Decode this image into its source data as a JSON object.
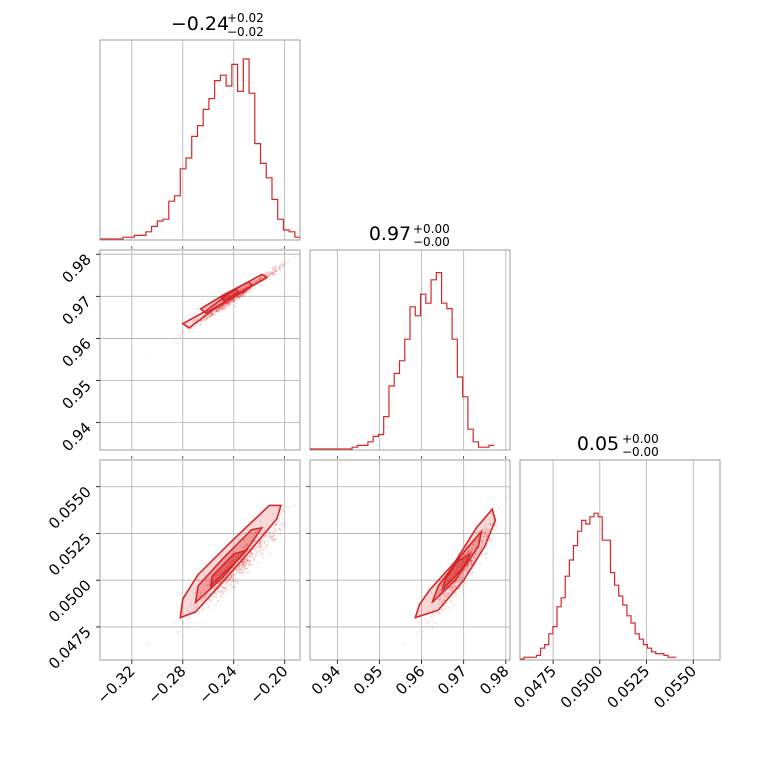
{
  "chart_data": {
    "type": "corner",
    "color": "#d62728",
    "parameters": [
      {
        "title_main": "−0.24",
        "title_sup": "+0.02",
        "title_sub": "−0.02",
        "range": [
          -0.345,
          -0.188
        ],
        "ticks": [
          -0.32,
          -0.28,
          -0.24,
          -0.2
        ],
        "tick_labels": [
          "−0.32",
          "−0.28",
          "−0.24",
          "−0.20"
        ],
        "hist_step": 0.0045,
        "hist": [
          0,
          0,
          0,
          0,
          0.01,
          0.01,
          0.02,
          0.02,
          0.04,
          0.07,
          0.1,
          0.11,
          0.21,
          0.24,
          0.39,
          0.45,
          0.57,
          0.63,
          0.72,
          0.78,
          0.88,
          0.91,
          0.85,
          0.97,
          0.82,
          1.0,
          0.81,
          0.53,
          0.42,
          0.34,
          0.22,
          0.11,
          0.05,
          0.04,
          0.01
        ]
      },
      {
        "title_main": "0.97",
        "title_sup": "+0.00",
        "title_sub": "−0.00",
        "range": [
          0.9335,
          0.981
        ],
        "ticks": [
          0.94,
          0.95,
          0.96,
          0.97,
          0.98
        ],
        "tick_labels": [
          "0.94",
          "0.95",
          "0.96",
          "0.97",
          "0.98"
        ],
        "hist_step": 0.00125,
        "hist": [
          0,
          0,
          0,
          0,
          0,
          0,
          0,
          0,
          0.01,
          0.02,
          0.02,
          0.04,
          0.07,
          0.08,
          0.18,
          0.35,
          0.42,
          0.49,
          0.61,
          0.79,
          0.74,
          0.86,
          0.81,
          0.94,
          0.98,
          0.81,
          0.78,
          0.61,
          0.4,
          0.29,
          0.11,
          0.04,
          0.01,
          0.01,
          0.02
        ]
      },
      {
        "title_main": "0.05",
        "title_sup": "+0.00",
        "title_sub": "−0.00",
        "range": [
          0.04573,
          0.05643
        ],
        "ticks": [
          0.0475,
          0.05,
          0.0525,
          0.055
        ],
        "tick_labels": [
          "0.0475",
          "0.0500",
          "0.0525",
          "0.0550"
        ],
        "hist_step": 0.00022,
        "hist": [
          0,
          0.01,
          0.01,
          0.01,
          0.02,
          0.06,
          0.08,
          0.14,
          0.18,
          0.29,
          0.34,
          0.46,
          0.55,
          0.63,
          0.71,
          0.77,
          0.75,
          0.79,
          0.81,
          0.79,
          0.66,
          0.66,
          0.48,
          0.41,
          0.35,
          0.3,
          0.24,
          0.2,
          0.14,
          0.11,
          0.08,
          0.06,
          0.04,
          0.03,
          0.03,
          0.02,
          0.01,
          0.01
        ]
      }
    ],
    "contours": {
      "pair_1_0": [
        [
          [
            -0.275,
            0.9625
          ],
          [
            -0.255,
            0.967
          ],
          [
            -0.228,
            0.972
          ],
          [
            -0.214,
            0.9745
          ],
          [
            -0.218,
            0.9752
          ],
          [
            -0.24,
            0.9715
          ],
          [
            -0.262,
            0.9665
          ],
          [
            -0.28,
            0.9635
          ]
        ],
        [
          [
            -0.262,
            0.966
          ],
          [
            -0.245,
            0.969
          ],
          [
            -0.226,
            0.9725
          ],
          [
            -0.228,
            0.9735
          ],
          [
            -0.247,
            0.9705
          ],
          [
            -0.266,
            0.967
          ]
        ],
        [
          [
            -0.248,
            0.969
          ],
          [
            -0.236,
            0.971
          ],
          [
            -0.238,
            0.9716
          ],
          [
            -0.25,
            0.9697
          ]
        ]
      ],
      "pair_2_0": [
        [
          [
            -0.282,
            0.048
          ],
          [
            -0.27,
            0.0483
          ],
          [
            -0.25,
            0.0498
          ],
          [
            -0.228,
            0.0515
          ],
          [
            -0.206,
            0.0533
          ],
          [
            -0.203,
            0.054
          ],
          [
            -0.212,
            0.054
          ],
          [
            -0.24,
            0.0522
          ],
          [
            -0.268,
            0.0503
          ],
          [
            -0.28,
            0.049
          ]
        ],
        [
          [
            -0.27,
            0.0488
          ],
          [
            -0.248,
            0.0502
          ],
          [
            -0.228,
            0.0518
          ],
          [
            -0.218,
            0.0528
          ],
          [
            -0.226,
            0.0527
          ],
          [
            -0.248,
            0.0512
          ],
          [
            -0.268,
            0.0497
          ]
        ],
        [
          [
            -0.258,
            0.0497
          ],
          [
            -0.238,
            0.051
          ],
          [
            -0.23,
            0.0516
          ],
          [
            -0.24,
            0.0514
          ],
          [
            -0.257,
            0.0502
          ]
        ]
      ],
      "pair_2_1": [
        [
          [
            0.9585,
            0.048
          ],
          [
            0.964,
            0.0484
          ],
          [
            0.97,
            0.05
          ],
          [
            0.975,
            0.0518
          ],
          [
            0.9775,
            0.0532
          ],
          [
            0.9768,
            0.0538
          ],
          [
            0.973,
            0.0528
          ],
          [
            0.968,
            0.051
          ],
          [
            0.962,
            0.0495
          ],
          [
            0.9595,
            0.0487
          ]
        ],
        [
          [
            0.9625,
            0.0488
          ],
          [
            0.968,
            0.05
          ],
          [
            0.9735,
            0.0518
          ],
          [
            0.9742,
            0.0526
          ],
          [
            0.97,
            0.0515
          ],
          [
            0.964,
            0.0497
          ]
        ],
        [
          [
            0.965,
            0.0495
          ],
          [
            0.97,
            0.0507
          ],
          [
            0.9715,
            0.0514
          ],
          [
            0.9685,
            0.051
          ],
          [
            0.9655,
            0.05
          ]
        ]
      ]
    },
    "scatter_seed": 7,
    "grid": true
  }
}
